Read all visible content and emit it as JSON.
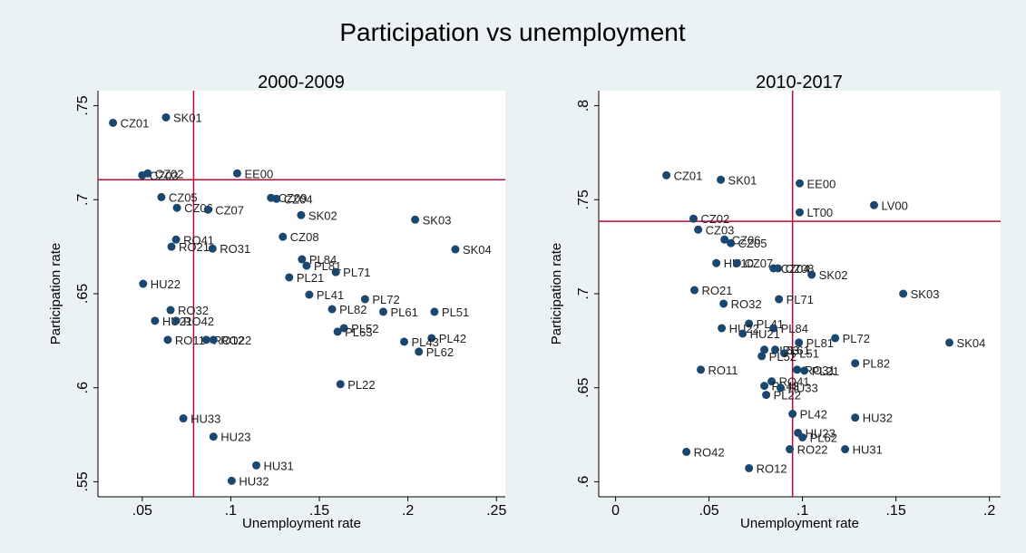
{
  "title": "Participation vs unemployment",
  "chart_data": [
    {
      "type": "scatter",
      "title": "2000-2009",
      "xlabel": "Unemployment rate",
      "ylabel": "Participation rate",
      "color": "#1a476f",
      "refline_color": "#c10534",
      "xlim": [
        0.025,
        0.255
      ],
      "ylim": [
        0.542,
        0.758
      ],
      "xticks": [
        {
          "value": 0.05,
          "label": ".05"
        },
        {
          "value": 0.1,
          "label": ".1"
        },
        {
          "value": 0.15,
          "label": ".15"
        },
        {
          "value": 0.2,
          "label": ".2"
        },
        {
          "value": 0.25,
          "label": ".25"
        }
      ],
      "yticks": [
        {
          "value": 0.55,
          "label": ".55"
        },
        {
          "value": 0.6,
          "label": ".6"
        },
        {
          "value": 0.65,
          "label": ".65"
        },
        {
          "value": 0.7,
          "label": ".7"
        },
        {
          "value": 0.75,
          "label": ".75"
        }
      ],
      "xline": 0.079,
      "yline": 0.7106,
      "labels": [
        "CZ01",
        "SK01",
        "CZ03",
        "CZ02",
        "EE00",
        "CZ05",
        "CZ09",
        "CZ04",
        "CZ06",
        "CZ07",
        "SK02",
        "SK03",
        "CZ08",
        "RO41",
        "RO21",
        "RO31",
        "SK04",
        "PL84",
        "PL81",
        "PL71",
        "PL21",
        "HU22",
        "PL41",
        "PL72",
        "PL82",
        "RO32",
        "PL61",
        "PL51",
        "HU21",
        "RO42",
        "PL52",
        "PL63",
        "PL42",
        "PL43",
        "PL62",
        "RO11",
        "RO12",
        "RO22",
        "PL22",
        "HU33",
        "HU23",
        "HU31",
        "HU32"
      ],
      "x": [
        0.0335,
        0.0634,
        0.05,
        0.0531,
        0.1036,
        0.0608,
        0.1227,
        0.1258,
        0.0696,
        0.0871,
        0.1397,
        0.2041,
        0.1294,
        0.0691,
        0.0665,
        0.0897,
        0.2268,
        0.1402,
        0.1428,
        0.1593,
        0.133,
        0.0505,
        0.1443,
        0.1758,
        0.1572,
        0.066,
        0.1861,
        0.215,
        0.0572,
        0.0691,
        0.1639,
        0.1603,
        0.2134,
        0.1979,
        0.2062,
        0.0644,
        0.0861,
        0.0902,
        0.1619,
        0.0732,
        0.0902,
        0.1144,
        0.1005
      ],
      "y": [
        0.7409,
        0.7438,
        0.713,
        0.714,
        0.714,
        0.7014,
        0.701,
        0.7005,
        0.6957,
        0.6947,
        0.6918,
        0.6894,
        0.6803,
        0.6788,
        0.675,
        0.674,
        0.6736,
        0.6683,
        0.6649,
        0.6615,
        0.6587,
        0.6553,
        0.6495,
        0.6471,
        0.6418,
        0.6413,
        0.6404,
        0.6404,
        0.6356,
        0.6356,
        0.6317,
        0.6298,
        0.6264,
        0.6245,
        0.6192,
        0.6255,
        0.6255,
        0.6255,
        0.6019,
        0.5837,
        0.574,
        0.5587,
        0.5505
      ]
    },
    {
      "type": "scatter",
      "title": "2010-2017",
      "xlabel": "Unemployment rate",
      "ylabel": "Participation rate",
      "color": "#1a476f",
      "refline_color": "#c10534",
      "xlim": [
        -0.009,
        0.206
      ],
      "ylim": [
        0.592,
        0.808
      ],
      "xticks": [
        0,
        {
          "value": 0.05,
          "label": ".05"
        },
        {
          "value": 0.1,
          "label": ".1"
        },
        {
          "value": 0.15,
          "label": ".15"
        },
        {
          "value": 0.2,
          "label": ".2"
        }
      ],
      "yticks": [
        {
          "value": 0.6,
          "label": ".6"
        },
        {
          "value": 0.65,
          "label": ".65"
        },
        {
          "value": 0.7,
          "label": ".7"
        },
        {
          "value": 0.75,
          "label": ".75"
        },
        {
          "value": 0.8,
          "label": ".8"
        }
      ],
      "xline": 0.0947,
      "yline": 0.7385,
      "labels": [
        "CZ01",
        "SK01",
        "EE00",
        "LV00",
        "LT00",
        "CZ02",
        "CZ03",
        "CZ06",
        "CZ05",
        "HU10",
        "CZ07",
        "CZ04",
        "CZ08",
        "SK02",
        "RO21",
        "SK03",
        "PL71",
        "RO32",
        "PL41",
        "HU22",
        "PL84",
        "HU21",
        "PL81",
        "PL72",
        "SK04",
        "PL63",
        "PL61",
        "PL51",
        "PL52",
        "PL82",
        "RO11",
        "RO31",
        "PL21",
        "RO41",
        "PL43",
        "HU33",
        "PL22",
        "PL42",
        "HU32",
        "HU23",
        "PL62",
        "RO22",
        "HU31",
        "RO42",
        "RO12"
      ],
      "x": [
        0.0272,
        0.0563,
        0.0985,
        0.1383,
        0.0985,
        0.0417,
        0.0442,
        0.0583,
        0.0617,
        0.0539,
        0.065,
        0.0845,
        0.0869,
        0.1049,
        0.0422,
        0.1539,
        0.0874,
        0.0578,
        0.0714,
        0.0568,
        0.0845,
        0.068,
        0.0981,
        0.1175,
        0.1786,
        0.0796,
        0.0854,
        0.0903,
        0.0782,
        0.1282,
        0.0456,
        0.0971,
        0.101,
        0.0835,
        0.0796,
        0.0883,
        0.0806,
        0.0947,
        0.1282,
        0.0976,
        0.1,
        0.0932,
        0.1228,
        0.0379,
        0.0714
      ],
      "y": [
        0.763,
        0.7606,
        0.7587,
        0.7471,
        0.7433,
        0.7399,
        0.7341,
        0.7288,
        0.7269,
        0.7163,
        0.7163,
        0.7135,
        0.7135,
        0.7101,
        0.7019,
        0.7,
        0.6971,
        0.6947,
        0.6841,
        0.6817,
        0.6817,
        0.6788,
        0.674,
        0.6764,
        0.674,
        0.6702,
        0.6702,
        0.6683,
        0.6668,
        0.663,
        0.6596,
        0.6596,
        0.6591,
        0.6534,
        0.651,
        0.65,
        0.6462,
        0.6361,
        0.6341,
        0.626,
        0.6236,
        0.6173,
        0.6173,
        0.6159,
        0.6072
      ]
    }
  ]
}
